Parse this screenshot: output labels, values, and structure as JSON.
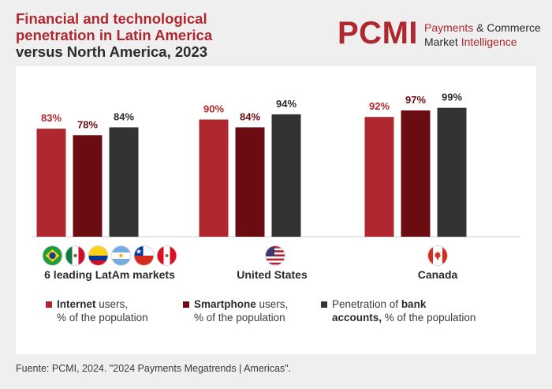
{
  "title": {
    "line1": "Financial and technological",
    "line2": "penetration in Latin America",
    "line3": "versus North America, 2023"
  },
  "logo": {
    "mark": "PCMI",
    "line1_a": "Payments",
    "line1_b": "& Commerce",
    "line2_a": "Market",
    "line2_b": "Intelligence"
  },
  "colors": {
    "internet": "#b0282f",
    "smartphone": "#6b0c13",
    "bank": "#333333",
    "accent": "#b0282f"
  },
  "chart_data": {
    "type": "bar",
    "categories": [
      "6 leading LatAm markets",
      "United States",
      "Canada"
    ],
    "series": [
      {
        "name": "Internet users, % of the population",
        "values": [
          83,
          90,
          92
        ],
        "color": "#b0282f"
      },
      {
        "name": "Smartphone users, % of the population",
        "values": [
          78,
          84,
          97
        ],
        "color": "#6b0c13"
      },
      {
        "name": "Penetration of bank accounts, % of the population",
        "values": [
          84,
          94,
          99
        ],
        "color": "#333333"
      }
    ],
    "value_suffix": "%",
    "ylim": [
      0,
      100
    ],
    "grid": false,
    "legend": "bottom"
  },
  "legend": [
    {
      "bold": "Internet",
      "rest": " users,",
      "line2": "% of the population"
    },
    {
      "bold": "Smartphone",
      "rest": " users,",
      "line2": "% of the population"
    },
    {
      "pre": "Penetration of ",
      "bold": "bank",
      "line2_bold": "accounts,",
      "line2": " % of the population"
    }
  ],
  "flags": {
    "group1": [
      "brazil-flag-icon",
      "mexico-flag-icon",
      "colombia-flag-icon",
      "argentina-flag-icon",
      "chile-flag-icon",
      "peru-flag-icon"
    ],
    "group2": [
      "usa-flag-icon"
    ],
    "group3": [
      "canada-flag-icon"
    ]
  },
  "source": "Fuente: PCMI, 2024. \"2024 Payments Megatrends | Americas\"."
}
